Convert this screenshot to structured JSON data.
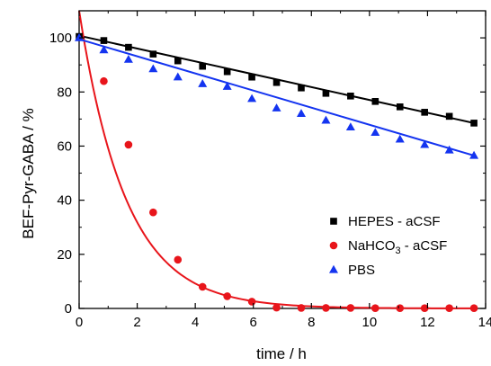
{
  "chart_data": {
    "type": "scatter",
    "xlabel": "time / h",
    "ylabel": "BEF-Pyr-GABA / %",
    "xlim": [
      0,
      14
    ],
    "ylim": [
      0,
      110
    ],
    "x_ticks": [
      "0",
      "2",
      "4",
      "6",
      "8",
      "10",
      "12",
      "14"
    ],
    "y_ticks": [
      "0",
      "20",
      "40",
      "60",
      "80",
      "100"
    ],
    "grid": false,
    "legend_position": "right",
    "series": [
      {
        "name": "HEPES - aCSF",
        "legend": {
          "pre": "HEPES - aCSF",
          "sub": "",
          "post": ""
        },
        "marker": "square",
        "color": "#000000",
        "x": [
          0,
          0.85,
          1.7,
          2.55,
          3.4,
          4.25,
          5.1,
          5.95,
          6.8,
          7.65,
          8.5,
          9.35,
          10.2,
          11.05,
          11.9,
          12.75,
          13.6
        ],
        "y": [
          100.5,
          99,
          96.5,
          94,
          91.5,
          89.5,
          87.5,
          85.5,
          83.5,
          81.5,
          79.5,
          78.5,
          76.5,
          74.5,
          72.5,
          71,
          68.5
        ],
        "fit": {
          "type": "linear",
          "y0": 100.8,
          "y_end": 68.5,
          "x_end": 13.6,
          "color": "#000000"
        }
      },
      {
        "name": "NaHCO3 - aCSF",
        "legend": {
          "pre": "NaHCO",
          "sub": "3",
          "post": " - aCSF"
        },
        "marker": "circle",
        "color": "#e8151b",
        "x": [
          0.85,
          1.7,
          2.55,
          3.4,
          4.25,
          5.1,
          5.95,
          6.8,
          7.65,
          8.5,
          9.35,
          10.2,
          11.05,
          11.9,
          12.75,
          13.6
        ],
        "y": [
          84,
          60.5,
          35.5,
          18,
          8,
          4.5,
          2.5,
          0.3,
          0.2,
          0.2,
          0.2,
          0.1,
          0.1,
          0.1,
          0.1,
          0.1
        ],
        "fit": {
          "type": "exponential",
          "a": 110,
          "k": 0.62,
          "x_end": 13.6,
          "color": "#e8151b"
        }
      },
      {
        "name": "PBS",
        "legend": {
          "pre": "PBS",
          "sub": "",
          "post": ""
        },
        "marker": "triangle",
        "color": "#1434f0",
        "x": [
          0,
          0.85,
          1.7,
          2.55,
          3.4,
          4.25,
          5.1,
          5.95,
          6.8,
          7.65,
          8.5,
          9.35,
          10.2,
          11.05,
          11.9,
          12.75,
          13.6
        ],
        "y": [
          100,
          95.5,
          92,
          88.5,
          85.5,
          83,
          82,
          77.5,
          74,
          72,
          69.5,
          67,
          65,
          62.5,
          60.5,
          58.5,
          56.5
        ],
        "fit": {
          "type": "linear",
          "y0": 99.5,
          "y_end": 56.5,
          "x_end": 13.6,
          "color": "#1434f0"
        }
      }
    ]
  }
}
